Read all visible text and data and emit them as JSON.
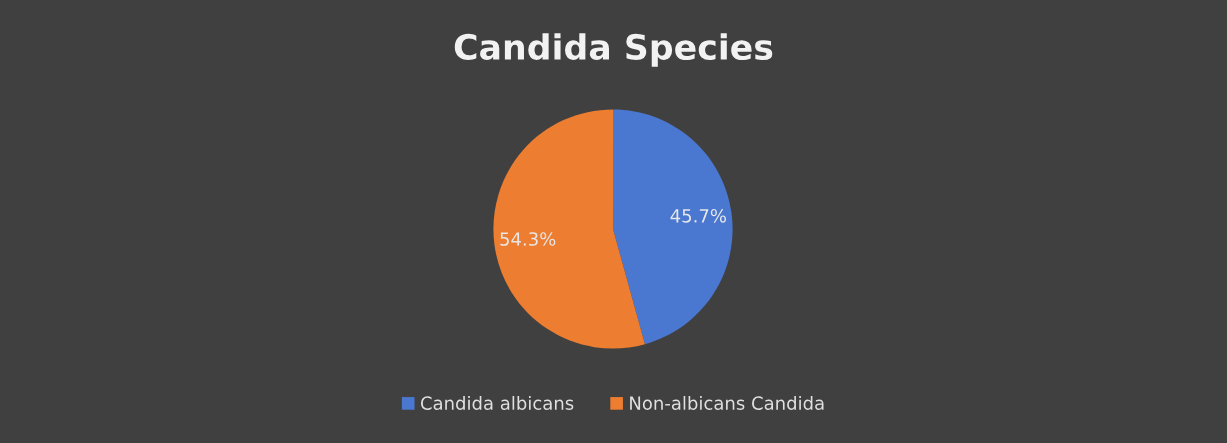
{
  "chart_data": {
    "type": "pie",
    "title": "Candida Species",
    "categories": [
      "Candida albicans",
      "Non-albicans Candida"
    ],
    "values": [
      45.7,
      54.3
    ],
    "colors": [
      "#4a78d0",
      "#ed7d31"
    ],
    "value_labels": [
      "45.7%",
      "54.3%"
    ],
    "legend": "bottom"
  }
}
